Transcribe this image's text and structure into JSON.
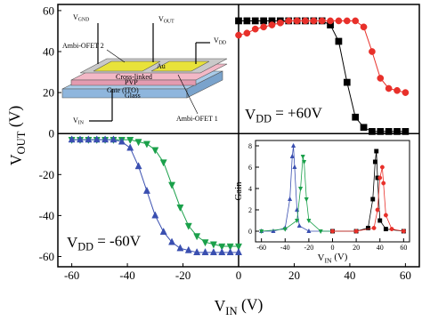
{
  "chart_data": [
    {
      "type": "line",
      "x_label": {
        "base": "V",
        "sub": "IN",
        "rest": " (V)"
      },
      "y_label": {
        "base": "V",
        "sub": "OUT",
        "rest": " (V)"
      },
      "xlim": [
        -65,
        65
      ],
      "ylim": [
        -65,
        63
      ],
      "xticks": [
        -60,
        -40,
        -20,
        0,
        20,
        40,
        60
      ],
      "yticks": [
        -60,
        -40,
        -20,
        0,
        20,
        40,
        60
      ],
      "annotations": [
        {
          "base": "V",
          "sub": "DD",
          "rest": " = +60V"
        },
        {
          "base": "V",
          "sub": "DD",
          "rest": " = -60V"
        }
      ],
      "series": [
        {
          "color": "#000000",
          "marker": "square",
          "x": [
            0,
            3,
            6,
            9,
            12,
            15,
            18,
            21,
            24,
            27,
            30,
            33,
            36,
            39,
            42,
            45,
            48,
            51,
            54,
            57,
            60
          ],
          "values": [
            55,
            55,
            55,
            55,
            55,
            55,
            55,
            55,
            55,
            55,
            55,
            53,
            45,
            25,
            8,
            3,
            1,
            1,
            1,
            1,
            1
          ]
        },
        {
          "color": "#e8302a",
          "marker": "circle",
          "x": [
            0,
            3,
            6,
            9,
            12,
            15,
            18,
            21,
            24,
            27,
            30,
            33,
            36,
            39,
            42,
            45,
            48,
            51,
            54,
            57,
            60
          ],
          "values": [
            48,
            49,
            51,
            52,
            53,
            54,
            55,
            55,
            55,
            55,
            55,
            55,
            55,
            55,
            55,
            52,
            40,
            27,
            22,
            21,
            20
          ]
        },
        {
          "color": "#1aa04a",
          "marker": "tri-down",
          "x": [
            -60,
            -57,
            -54,
            -51,
            -48,
            -45,
            -42,
            -39,
            -36,
            -33,
            -30,
            -27,
            -24,
            -21,
            -18,
            -15,
            -12,
            -9,
            -6,
            -3,
            0
          ],
          "values": [
            -3,
            -3,
            -3,
            -3,
            -3,
            -3,
            -3,
            -3,
            -4,
            -5,
            -8,
            -14,
            -25,
            -36,
            -45,
            -50,
            -53,
            -54,
            -55,
            -55,
            -55
          ]
        },
        {
          "color": "#3a4fb0",
          "marker": "tri-up",
          "x": [
            -60,
            -57,
            -54,
            -51,
            -48,
            -45,
            -42,
            -39,
            -36,
            -33,
            -30,
            -27,
            -24,
            -21,
            -18,
            -15,
            -12,
            -9,
            -6,
            -3,
            0
          ],
          "values": [
            -3,
            -3,
            -3,
            -3,
            -3,
            -3,
            -4,
            -7,
            -16,
            -28,
            -40,
            -48,
            -53,
            -56,
            -57,
            -58,
            -58,
            -58,
            -58,
            -58,
            -58
          ]
        }
      ]
    },
    {
      "type": "line",
      "x_label": {
        "base": "V",
        "sub": "IN",
        "rest": " (V)"
      },
      "y_label": {
        "base": "Gain"
      },
      "xlim": [
        -65,
        65
      ],
      "ylim": [
        -1,
        8.5
      ],
      "xticks": [
        -60,
        -40,
        -20,
        0,
        20,
        40,
        60
      ],
      "yticks": [
        0,
        2,
        4,
        6,
        8
      ],
      "series": [
        {
          "color": "#3a4fb0",
          "marker": "tri-up",
          "x": [
            -60,
            -50,
            -40,
            -36,
            -34,
            -33,
            -32,
            -30,
            -28,
            -20,
            0
          ],
          "values": [
            0,
            0,
            0.3,
            3,
            7,
            8,
            6,
            2,
            0.5,
            0,
            0
          ]
        },
        {
          "color": "#1aa04a",
          "marker": "tri-down",
          "x": [
            -60,
            -40,
            -30,
            -27,
            -25,
            -24,
            -22,
            -20,
            -10,
            0
          ],
          "values": [
            0,
            0.2,
            1,
            4,
            7,
            6.5,
            3,
            1,
            0,
            0
          ]
        },
        {
          "color": "#000000",
          "marker": "square",
          "x": [
            0,
            20,
            30,
            34,
            36,
            37,
            38,
            40,
            45,
            60
          ],
          "values": [
            0,
            0,
            0.3,
            3,
            6.5,
            7.5,
            5,
            1,
            0.2,
            0
          ]
        },
        {
          "color": "#e8302a",
          "marker": "circle",
          "x": [
            0,
            20,
            35,
            38,
            40,
            42,
            43,
            45,
            50,
            60
          ],
          "values": [
            0,
            0,
            0.3,
            2,
            5,
            6,
            4.5,
            1.5,
            0.2,
            0
          ]
        }
      ]
    }
  ],
  "schematic": {
    "v_gnd": {
      "base": "V",
      "sub": "GND"
    },
    "v_out": {
      "base": "V",
      "sub": "OUT"
    },
    "v_dd": {
      "base": "V",
      "sub": "DD"
    },
    "v_in": {
      "base": "V",
      "sub": "IN"
    },
    "ofet2": "Ambi-OFET 2",
    "ofet1": "Ambi-OFET 1",
    "au": "Au",
    "pvp1": "Cross-linked",
    "pvp2": "PVP",
    "gate": "Gate (ITO)",
    "glass": "Glass"
  }
}
